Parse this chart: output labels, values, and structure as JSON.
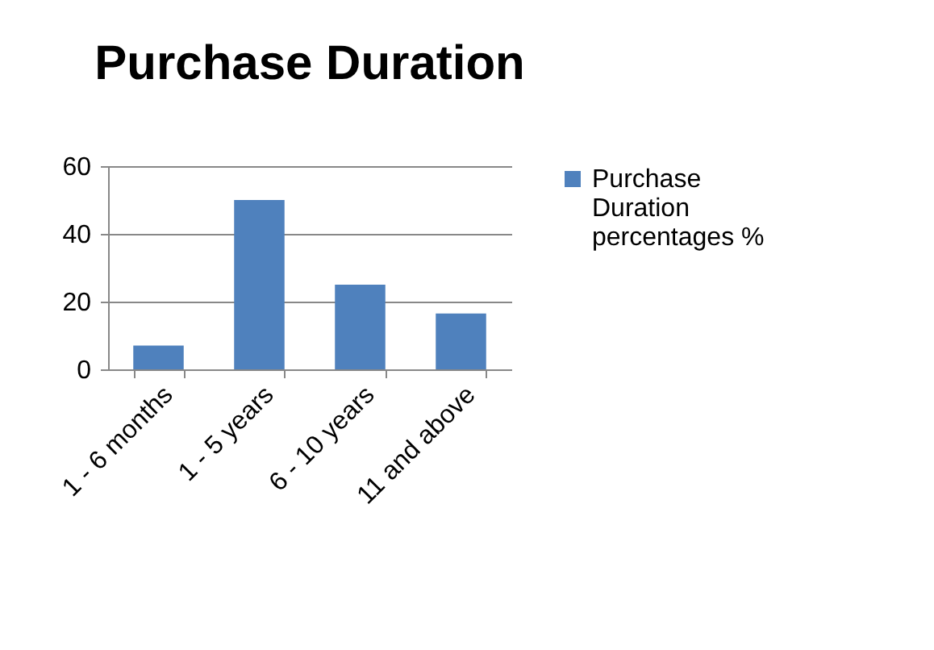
{
  "chart_data": {
    "type": "bar",
    "title": "Purchase Duration",
    "categories": [
      "1 - 6 months",
      "1 - 5 years",
      "6 - 10 years",
      "11 and above"
    ],
    "series": [
      {
        "name": "Purchase Duration percentages %",
        "color": "#4f81bd",
        "values": [
          7,
          50,
          25,
          16.5
        ]
      }
    ],
    "ylim": [
      0,
      60
    ],
    "yticks": [
      0,
      20,
      40,
      60
    ],
    "grid": "y",
    "legend": "right"
  }
}
